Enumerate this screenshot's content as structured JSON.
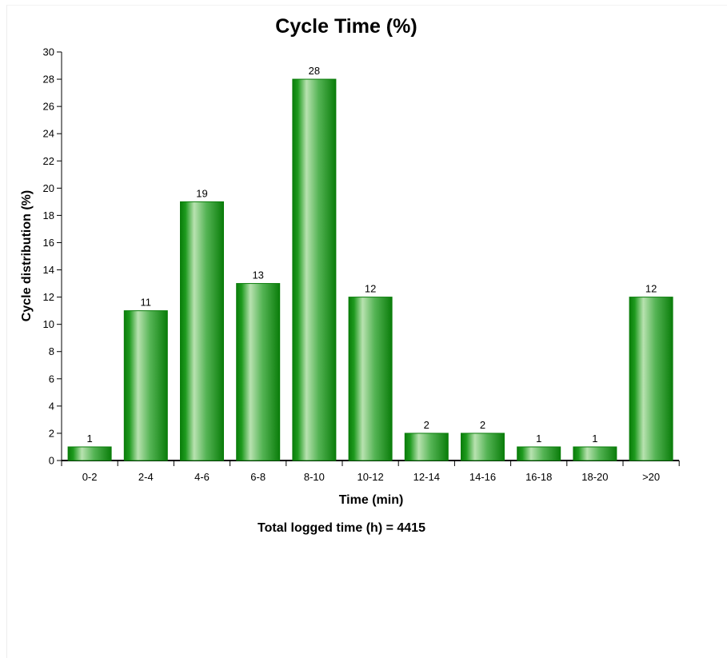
{
  "chart_data": {
    "type": "bar",
    "title": "Cycle Time (%)",
    "xlabel": "Time (min)",
    "ylabel": "Cycle distribution (%)",
    "note": "Total logged time (h) = 4415",
    "categories": [
      "0-2",
      "2-4",
      "4-6",
      "6-8",
      "8-10",
      "10-12",
      "12-14",
      "14-16",
      "16-18",
      "18-20",
      ">20"
    ],
    "values": [
      1,
      11,
      19,
      13,
      28,
      12,
      2,
      2,
      1,
      1,
      12
    ],
    "ylim": [
      0,
      30
    ],
    "ytick_step": 2,
    "grid": false,
    "legend": "none",
    "colors": {
      "bar_dark": "#0a7d0a",
      "bar_light": "#b8e2b0",
      "axis": "#000000"
    }
  }
}
